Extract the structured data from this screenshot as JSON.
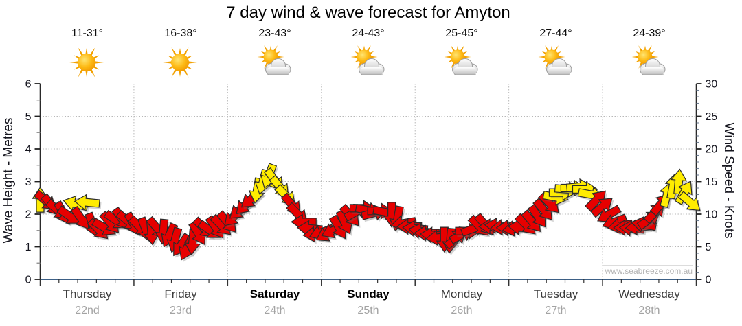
{
  "title": "7 day wind & wave forecast for Amyton",
  "watermark": "www.seabreeze.com.au",
  "days": [
    {
      "name": "Thursday",
      "date": "22nd",
      "temp": "11-31°",
      "icon": "sunny",
      "bold": false
    },
    {
      "name": "Friday",
      "date": "23rd",
      "temp": "16-38°",
      "icon": "sunny",
      "bold": false
    },
    {
      "name": "Saturday",
      "date": "24th",
      "temp": "23-43°",
      "icon": "sun-cloud",
      "bold": true
    },
    {
      "name": "Sunday",
      "date": "25th",
      "temp": "24-43°",
      "icon": "sun-cloud",
      "bold": true
    },
    {
      "name": "Monday",
      "date": "26th",
      "temp": "25-45°",
      "icon": "sun-cloud",
      "bold": false
    },
    {
      "name": "Tuesday",
      "date": "27th",
      "temp": "27-44°",
      "icon": "sun-cloud",
      "bold": false
    },
    {
      "name": "Wednesday",
      "date": "28th",
      "temp": "24-39°",
      "icon": "sun-cloud",
      "bold": false
    }
  ],
  "left_axis": {
    "label": "Wave Height - Metres",
    "min": 0,
    "max": 6,
    "major_step": 1,
    "minor_step": 0.5
  },
  "right_axis": {
    "label": "Wind Speed - Knots",
    "min": 0,
    "max": 30,
    "major_step": 5,
    "minor_step": 1
  },
  "x_axis": {
    "days": 7,
    "hours_total": 168,
    "minor_divisions_per_day": 5
  },
  "chart_data": {
    "type": "wind-arrows",
    "title": "7 day wind & wave forecast for Amyton",
    "x_unit": "hours_from_start",
    "x_range": [
      0,
      168
    ],
    "wind_axis_knots": {
      "min": 0,
      "max": 30
    },
    "wave_axis_metres": {
      "min": 0,
      "max": 6
    },
    "arrow_colors": {
      "r": "#e60000",
      "y": "#ffec00"
    },
    "angle_convention": "degrees clockwise from east; 0 = arrow points right, -90 = up",
    "points": [
      [
        0,
        12.2,
        -90,
        "y"
      ],
      [
        1.5,
        12,
        40,
        "r"
      ],
      [
        3,
        11.3,
        50,
        "r"
      ],
      [
        4.5,
        10.6,
        40,
        "r"
      ],
      [
        6,
        10.1,
        60,
        "r"
      ],
      [
        7.5,
        9.7,
        35,
        "r"
      ],
      [
        9,
        11.6,
        195,
        "y"
      ],
      [
        10.5,
        9.3,
        55,
        "r"
      ],
      [
        12,
        11.8,
        185,
        "y"
      ],
      [
        13.5,
        8.3,
        70,
        "r"
      ],
      [
        15,
        7.6,
        45,
        "r"
      ],
      [
        16.5,
        7.9,
        30,
        "r"
      ],
      [
        18,
        8.6,
        50,
        "r"
      ],
      [
        19.5,
        9,
        35,
        "r"
      ],
      [
        21,
        9.2,
        55,
        "r"
      ],
      [
        22.5,
        8.9,
        40,
        "r"
      ],
      [
        24,
        8.4,
        60,
        "r"
      ],
      [
        25.5,
        8,
        45,
        "r"
      ],
      [
        27,
        7.6,
        70,
        "r"
      ],
      [
        28.5,
        7.2,
        85,
        "r"
      ],
      [
        30,
        7.8,
        50,
        "r"
      ],
      [
        31.5,
        7.3,
        95,
        "r"
      ],
      [
        33,
        6.7,
        115,
        "r"
      ],
      [
        34.5,
        6,
        105,
        "r"
      ],
      [
        36,
        5.2,
        125,
        "r"
      ],
      [
        37.5,
        4.7,
        115,
        "r"
      ],
      [
        39,
        5.7,
        95,
        "r"
      ],
      [
        40.5,
        7,
        60,
        "r"
      ],
      [
        42,
        7.8,
        45,
        "r"
      ],
      [
        43.5,
        7.5,
        35,
        "r"
      ],
      [
        45,
        7.9,
        55,
        "r"
      ],
      [
        46.5,
        8.2,
        45,
        "r"
      ],
      [
        48,
        8.7,
        50,
        "r"
      ],
      [
        49.5,
        9.6,
        135,
        "r"
      ],
      [
        51,
        10.6,
        140,
        "r"
      ],
      [
        52.5,
        11.4,
        135,
        "r"
      ],
      [
        54,
        12.3,
        140,
        "r"
      ],
      [
        55.5,
        13.6,
        100,
        "y"
      ],
      [
        57,
        14.9,
        105,
        "y"
      ],
      [
        58.5,
        15.8,
        110,
        "y"
      ],
      [
        60,
        15.2,
        55,
        "y"
      ],
      [
        61.5,
        14.1,
        50,
        "y"
      ],
      [
        63,
        12.8,
        45,
        "y"
      ],
      [
        64.5,
        11.4,
        50,
        "r"
      ],
      [
        66,
        10,
        45,
        "r"
      ],
      [
        67.5,
        8.8,
        180,
        "r"
      ],
      [
        69,
        7.8,
        185,
        "r"
      ],
      [
        70.5,
        6.9,
        175,
        "r"
      ],
      [
        72,
        7.2,
        160,
        "r"
      ],
      [
        73.5,
        7,
        150,
        "r"
      ],
      [
        75,
        7.5,
        155,
        "r"
      ],
      [
        76.5,
        7.9,
        60,
        "r"
      ],
      [
        78,
        8.7,
        65,
        "r"
      ],
      [
        79.5,
        9.7,
        50,
        "r"
      ],
      [
        81,
        10.4,
        -30,
        "r"
      ],
      [
        82.5,
        10.9,
        0,
        "r"
      ],
      [
        84,
        10.6,
        10,
        "r"
      ],
      [
        85.5,
        10.2,
        -15,
        "r"
      ],
      [
        87,
        10.5,
        0,
        "r"
      ],
      [
        88.5,
        10.3,
        10,
        "r"
      ],
      [
        90,
        9.9,
        90,
        "r"
      ],
      [
        91.5,
        9.3,
        100,
        "r"
      ],
      [
        93,
        8.6,
        170,
        "r"
      ],
      [
        94.5,
        8.1,
        180,
        "r"
      ],
      [
        96,
        7.8,
        185,
        "r"
      ],
      [
        97.5,
        7.4,
        190,
        "r"
      ],
      [
        99,
        7.1,
        180,
        "r"
      ],
      [
        100.5,
        6.8,
        185,
        "r"
      ],
      [
        102,
        6.4,
        175,
        "r"
      ],
      [
        103.5,
        6.1,
        90,
        "r"
      ],
      [
        105,
        5.9,
        95,
        "r"
      ],
      [
        106.5,
        6.3,
        -40,
        "r"
      ],
      [
        108,
        6.9,
        -30,
        "r"
      ],
      [
        109.5,
        7.4,
        0,
        "r"
      ],
      [
        111,
        7.8,
        -20,
        "r"
      ],
      [
        112.5,
        8.1,
        45,
        "r"
      ],
      [
        114,
        8.3,
        50,
        "r"
      ],
      [
        115.5,
        8.1,
        180,
        "r"
      ],
      [
        117,
        8.2,
        185,
        "r"
      ],
      [
        118.5,
        8,
        175,
        "r"
      ],
      [
        120,
        7.9,
        180,
        "r"
      ],
      [
        121.5,
        7.8,
        170,
        "r"
      ],
      [
        123,
        8,
        185,
        "r"
      ],
      [
        124.5,
        8.3,
        45,
        "r"
      ],
      [
        126,
        8.8,
        50,
        "r"
      ],
      [
        127.5,
        9.6,
        55,
        "r"
      ],
      [
        129,
        10.6,
        50,
        "r"
      ],
      [
        130.5,
        11.6,
        45,
        "r"
      ],
      [
        132,
        12.6,
        10,
        "y"
      ],
      [
        133.5,
        13.3,
        0,
        "y"
      ],
      [
        135,
        13.8,
        5,
        "y"
      ],
      [
        136.5,
        14,
        0,
        "y"
      ],
      [
        138,
        14.2,
        -5,
        "y"
      ],
      [
        139.5,
        13.8,
        0,
        "y"
      ],
      [
        141,
        13,
        10,
        "y"
      ],
      [
        142.5,
        12.2,
        -45,
        "r"
      ],
      [
        144,
        11.2,
        -40,
        "r"
      ],
      [
        145.5,
        9.9,
        150,
        "r"
      ],
      [
        147,
        8.8,
        160,
        "r"
      ],
      [
        148.5,
        8.2,
        170,
        "r"
      ],
      [
        150,
        7.9,
        180,
        "r"
      ],
      [
        151.5,
        7.8,
        185,
        "r"
      ],
      [
        153,
        8,
        175,
        "r"
      ],
      [
        154.5,
        8.4,
        190,
        "r"
      ],
      [
        156,
        9.2,
        -35,
        "r"
      ],
      [
        157.5,
        10.3,
        -45,
        "r"
      ],
      [
        159,
        11.6,
        -50,
        "r"
      ],
      [
        160.5,
        13,
        -75,
        "y"
      ],
      [
        162,
        14.3,
        -80,
        "y"
      ],
      [
        163.5,
        15,
        -85,
        "y"
      ],
      [
        165,
        13.4,
        -60,
        "y"
      ],
      [
        166.5,
        11.8,
        40,
        "y"
      ]
    ]
  }
}
